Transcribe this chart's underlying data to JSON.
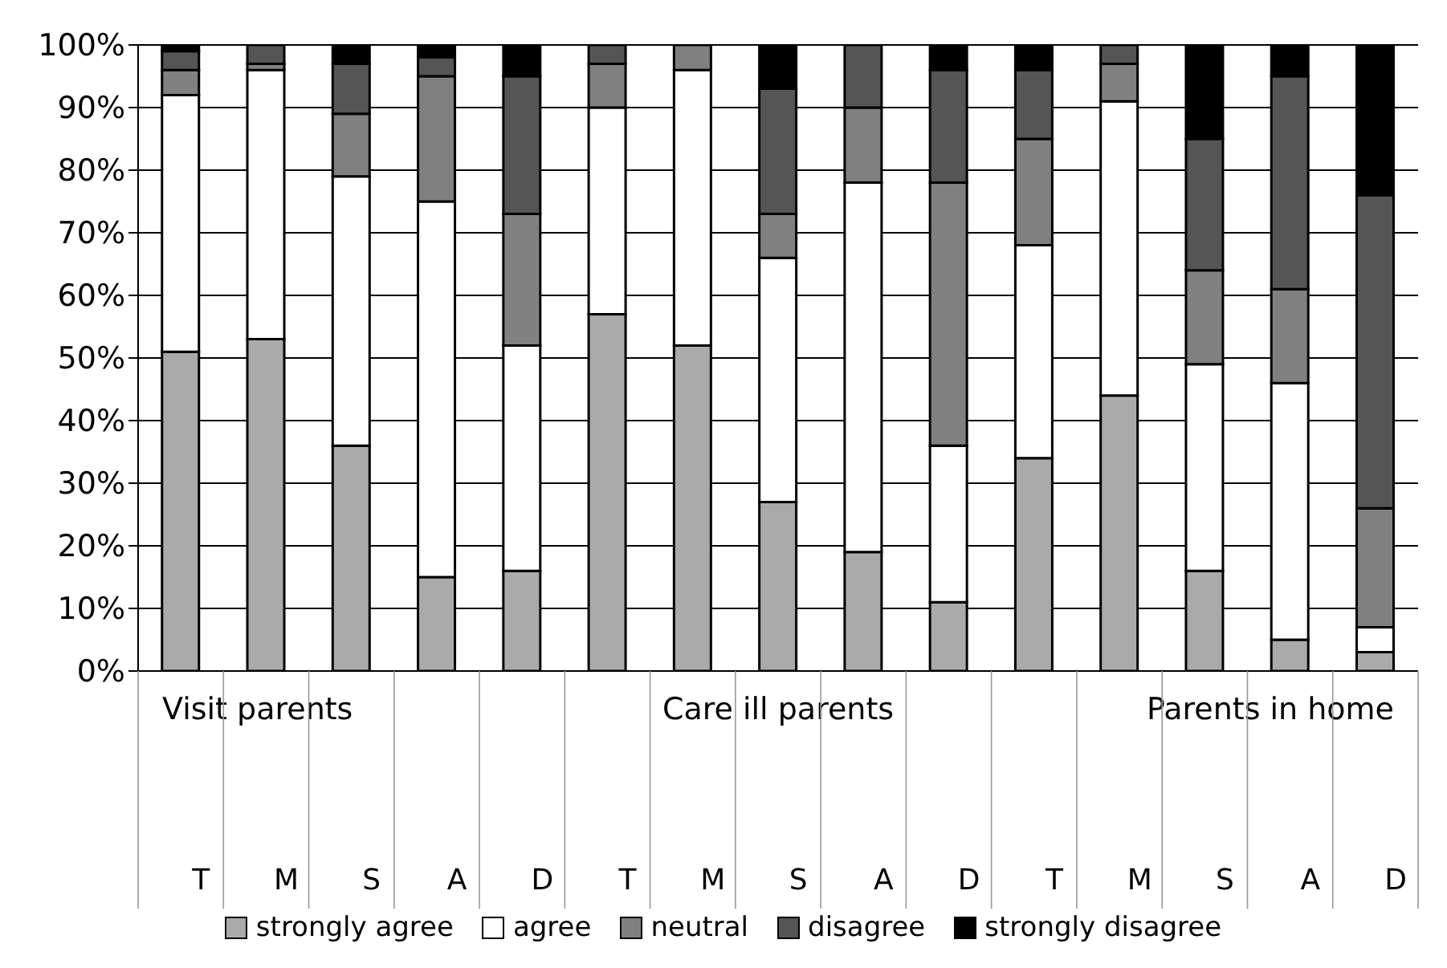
{
  "chart_data": {
    "type": "bar",
    "stacked": true,
    "categories": [
      "T",
      "M",
      "S",
      "A",
      "D",
      "T",
      "M",
      "S",
      "A",
      "D",
      "T",
      "M",
      "S",
      "A",
      "D"
    ],
    "series": [
      {
        "name": "strongly agree",
        "color": "#aaaaaa",
        "values": [
          51,
          53,
          36,
          15,
          16,
          57,
          52,
          27,
          19,
          11,
          34,
          44,
          16,
          5,
          3
        ]
      },
      {
        "name": "agree",
        "color": "#ffffff",
        "values": [
          41,
          43,
          43,
          60,
          36,
          33,
          44,
          39,
          59,
          25,
          34,
          47,
          33,
          41,
          4
        ]
      },
      {
        "name": "neutral",
        "color": "#808080",
        "values": [
          4,
          1,
          10,
          20,
          21,
          7,
          4,
          7,
          12,
          42,
          17,
          6,
          15,
          15,
          19
        ]
      },
      {
        "name": "disagree",
        "color": "#555555",
        "values": [
          3,
          3,
          8,
          3,
          22,
          3,
          0,
          20,
          10,
          18,
          11,
          3,
          21,
          34,
          50
        ]
      },
      {
        "name": "strongly disagree",
        "color": "#000000",
        "values": [
          1,
          0,
          3,
          2,
          5,
          0,
          0,
          7,
          0,
          4,
          4,
          0,
          15,
          5,
          24
        ]
      }
    ],
    "ylim": [
      0,
      100
    ],
    "yticks": [
      {
        "value": 0,
        "label": "0%"
      },
      {
        "value": 10,
        "label": "10%"
      },
      {
        "value": 20,
        "label": "20%"
      },
      {
        "value": 30,
        "label": "30%"
      },
      {
        "value": 40,
        "label": "40%"
      },
      {
        "value": 50,
        "label": "50%"
      },
      {
        "value": 60,
        "label": "60%"
      },
      {
        "value": 70,
        "label": "70%"
      },
      {
        "value": 80,
        "label": "80%"
      },
      {
        "value": 90,
        "label": "90%"
      },
      {
        "value": 100,
        "label": "100%"
      }
    ],
    "grid": "y",
    "legend": "bottom",
    "annotations": [
      "Visit parents",
      "Care ill parents",
      "Parents in home"
    ]
  }
}
